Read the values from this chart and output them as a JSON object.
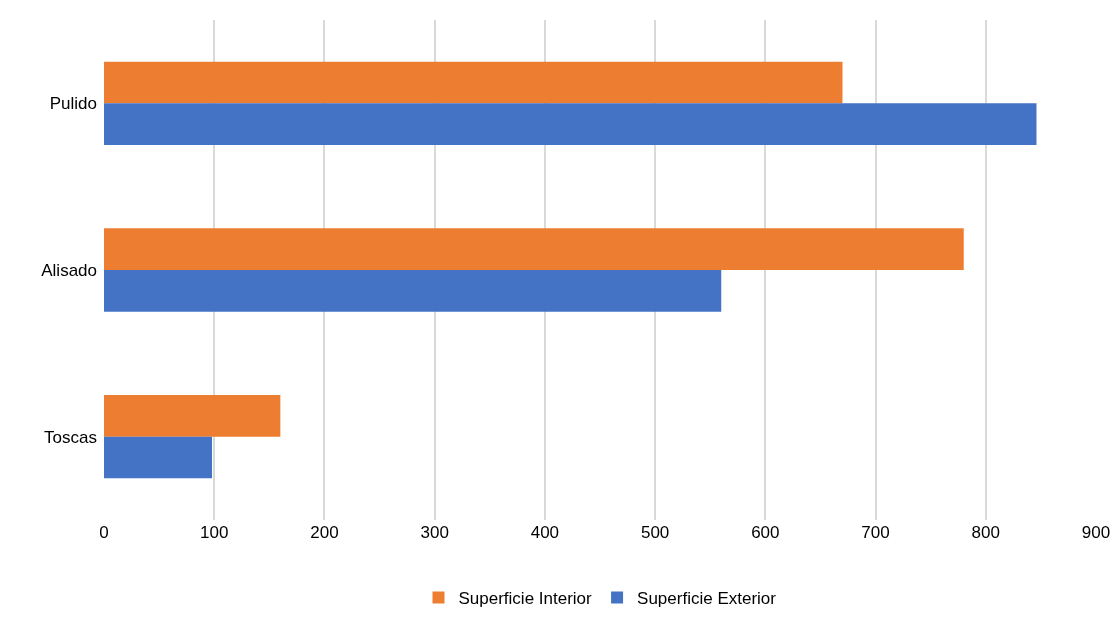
{
  "chart_data": {
    "type": "bar",
    "orientation": "horizontal",
    "categories": [
      "Pulido",
      "Alisado",
      "Toscas"
    ],
    "series": [
      {
        "name": "Superficie Interior",
        "color": "#ed7d31",
        "values": [
          670,
          780,
          160
        ]
      },
      {
        "name": "Superficie Exterior",
        "color": "#4472c4",
        "values": [
          846,
          560,
          98
        ]
      }
    ],
    "xlim": [
      0,
      900
    ],
    "xticks": [
      0,
      100,
      200,
      300,
      400,
      500,
      600,
      700,
      800,
      900
    ],
    "grid": "x",
    "legend": "bottom"
  }
}
